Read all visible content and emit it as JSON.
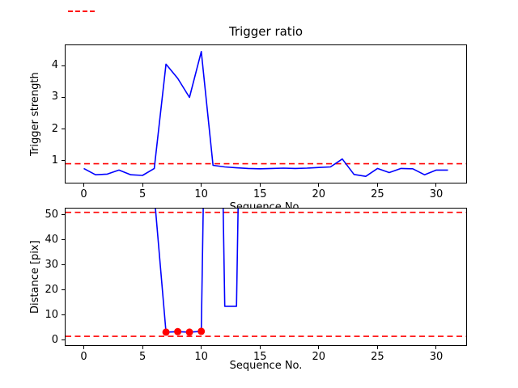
{
  "colors": {
    "line": "#0000ff",
    "threshold": "#ff0000",
    "marker": "#ff0000",
    "background": "#ffffff",
    "text": "#000000"
  },
  "chart_data": [
    {
      "id": "top",
      "type": "line",
      "title": "Trigger ratio",
      "xlabel": "Sequence No.",
      "ylabel": "Trigger strength",
      "x": [
        0,
        1,
        2,
        3,
        4,
        5,
        6,
        7,
        8,
        9,
        10,
        11,
        12,
        13,
        14,
        15,
        16,
        17,
        18,
        19,
        20,
        21,
        22,
        23,
        24,
        25,
        26,
        27,
        28,
        29,
        30,
        31
      ],
      "values": [
        0.75,
        0.55,
        0.57,
        0.7,
        0.55,
        0.53,
        0.75,
        4.05,
        3.6,
        3.0,
        4.45,
        0.85,
        0.8,
        0.77,
        0.75,
        0.74,
        0.75,
        0.76,
        0.75,
        0.76,
        0.78,
        0.8,
        1.05,
        0.56,
        0.5,
        0.75,
        0.62,
        0.75,
        0.74,
        0.55,
        0.7,
        0.7
      ],
      "xticks": [
        0,
        5,
        10,
        15,
        20,
        25,
        30
      ],
      "yticks": [
        1,
        2,
        3,
        4
      ],
      "xlim": [
        -1.55,
        32.55
      ],
      "ylim": [
        0.3,
        4.65
      ],
      "thresholds": [
        0.9
      ],
      "threshold_style": "dashed",
      "line_color": "#0000ff",
      "threshold_color": "#ff0000",
      "grid": false
    },
    {
      "id": "bottom",
      "type": "line",
      "xlabel": "Sequence No.",
      "ylabel": "Distance [pix]",
      "x": [
        0,
        1,
        2,
        3,
        4,
        5,
        6,
        7,
        8,
        9,
        10,
        11,
        12,
        13,
        14,
        15,
        16,
        17,
        18,
        19,
        20,
        21,
        22,
        23,
        24,
        25,
        26,
        27,
        28,
        29,
        30,
        31
      ],
      "values": [
        300,
        300,
        300,
        300,
        300,
        300,
        58,
        3.2,
        3.4,
        3.2,
        3.5,
        300,
        13.5,
        13.5,
        300,
        300,
        300,
        300,
        300,
        300,
        300,
        300,
        300,
        300,
        300,
        300,
        300,
        300,
        300,
        300,
        300,
        300
      ],
      "offscale_note": "values shown as 300 are off-scale above the axes; the blue curve is clipped at the top spine",
      "xticks": [
        0,
        5,
        10,
        15,
        20,
        25,
        30
      ],
      "yticks": [
        0,
        10,
        20,
        30,
        40,
        50
      ],
      "xlim": [
        -1.55,
        32.55
      ],
      "ylim": [
        -2,
        52.5
      ],
      "thresholds": [
        51,
        1.5
      ],
      "threshold_style": "dashed",
      "markers": {
        "x": [
          7,
          8,
          9,
          10
        ],
        "y": [
          3.2,
          3.4,
          3.2,
          3.5
        ],
        "color": "#ff0000",
        "shape": "circle"
      },
      "line_color": "#0000ff",
      "threshold_color": "#ff0000",
      "grid": false
    }
  ]
}
